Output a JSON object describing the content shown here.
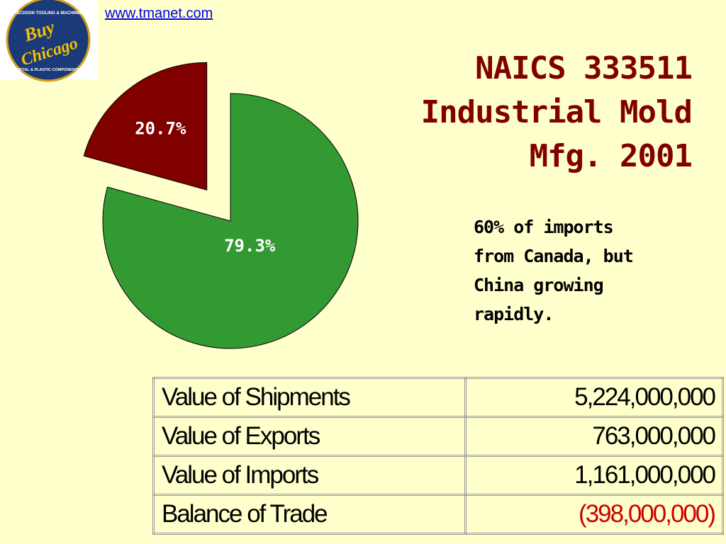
{
  "link": "www.tmanet.com",
  "logo": {
    "top": "PRECISION TOOLING & MACHINING",
    "line1": "Buy",
    "line2": "Chicago",
    "bottom": "METAL & PLASTIC COMPONENTS"
  },
  "title": "NAICS 333511\nIndustrial Mold\nMfg. 2001",
  "note": "60% of imports\nfrom Canada, but\nChina growing\nrapidly.",
  "chart_data": {
    "type": "pie",
    "values": [
      79.3,
      20.7
    ],
    "value_labels": [
      "79.3%",
      "20.7%"
    ],
    "colors": [
      "#339933",
      "#800000"
    ],
    "explode": [
      false,
      true
    ]
  },
  "table": {
    "rows": [
      [
        "Value of Shipments",
        "5,224,000,000"
      ],
      [
        "Value of Exports",
        "763,000,000"
      ],
      [
        "Value of Imports",
        "1,161,000,000"
      ],
      [
        "Balance of Trade",
        "(398,000,000)"
      ]
    ]
  }
}
